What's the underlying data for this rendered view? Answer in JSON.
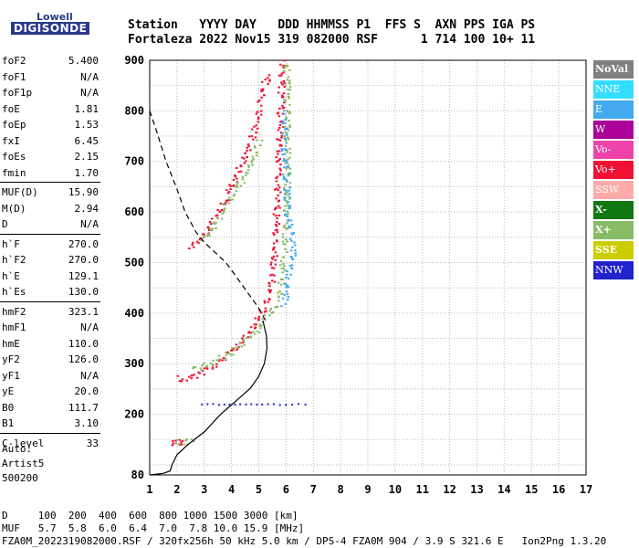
{
  "logo": {
    "line1": "Lowell",
    "line2": "DIGISONDE"
  },
  "header": {
    "line1": "Station   YYYY DAY   DDD HHMMSS P1  FFS S  AXN PPS IGA PS",
    "line2": "Fortaleza 2022 Nov15 319 082000 RSF      1 714 100 10+ 11"
  },
  "param_groups": [
    [
      {
        "name": "foF2",
        "value": "5.400"
      },
      {
        "name": "foF1",
        "value": "N/A"
      },
      {
        "name": "foF1p",
        "value": "N/A"
      },
      {
        "name": "foE",
        "value": "1.81"
      },
      {
        "name": "foEp",
        "value": "1.53"
      },
      {
        "name": "fxI",
        "value": "6.45"
      },
      {
        "name": "foEs",
        "value": "2.15"
      },
      {
        "name": "fmin",
        "value": "1.70"
      }
    ],
    [
      {
        "name": "MUF(D)",
        "value": "15.90"
      },
      {
        "name": "M(D)",
        "value": "2.94"
      },
      {
        "name": "D",
        "value": "N/A"
      }
    ],
    [
      {
        "name": "h`F",
        "value": "270.0"
      },
      {
        "name": "h`F2",
        "value": "270.0"
      },
      {
        "name": "h`E",
        "value": "129.1"
      },
      {
        "name": "h`Es",
        "value": "130.0"
      }
    ],
    [
      {
        "name": "hmF2",
        "value": "323.1"
      },
      {
        "name": "hmF1",
        "value": "N/A"
      },
      {
        "name": "hmE",
        "value": "110.0"
      },
      {
        "name": "yF2",
        "value": "126.0"
      },
      {
        "name": "yF1",
        "value": "N/A"
      },
      {
        "name": "yE",
        "value": "20.0"
      },
      {
        "name": "B0",
        "value": "111.7"
      },
      {
        "name": "B1",
        "value": "3.10"
      }
    ],
    [
      {
        "name": "C-level",
        "value": "33"
      }
    ]
  ],
  "autoscaling": {
    "line1": "Auto:",
    "line2": "Artist5",
    "line3": "500200"
  },
  "legend": [
    {
      "label": "NoVal",
      "bg": "#808080",
      "fg": "#ffffff",
      "bold": true
    },
    {
      "label": "NNE",
      "bg": "#33ddff",
      "fg": "#ffffff"
    },
    {
      "label": "E",
      "bg": "#44aaee",
      "fg": "#ffffff"
    },
    {
      "label": "W",
      "bg": "#aa0099",
      "fg": "#ffffff"
    },
    {
      "label": "Vo-",
      "bg": "#ee44aa",
      "fg": "#ffffff"
    },
    {
      "label": "Vo+",
      "bg": "#ee1133",
      "fg": "#ffffff"
    },
    {
      "label": "SSW",
      "bg": "#ffaaaa",
      "fg": "#ffffff"
    },
    {
      "label": "X-",
      "bg": "#117711",
      "fg": "#ffffff",
      "bold": true
    },
    {
      "label": "X+",
      "bg": "#88bb66",
      "fg": "#ffffff",
      "bold": true
    },
    {
      "label": "SSE",
      "bg": "#cccc00",
      "fg": "#ffffff",
      "bold": true
    },
    {
      "label": "NNW",
      "bg": "#2222cc",
      "fg": "#ffffff"
    }
  ],
  "footer": {
    "line1": "D     100  200  400  600  800 1000 1500 3000 [km]",
    "line2": "MUF   5.7  5.8  6.0  6.4  7.0  7.8 10.0 15.9 [MHz]",
    "line3": "FZA0M_2022319082000.RSF / 320fx256h 50 kHz 5.0 km / DPS-4 FZA0M 904 / 3.9 S 321.6 E   Ion2Png 1.3.20"
  },
  "chart_data": {
    "type": "scatter",
    "xlabel": "",
    "ylabel": "",
    "xlim": [
      1,
      17
    ],
    "ylim": [
      80,
      900
    ],
    "xticks": [
      1,
      2,
      3,
      4,
      5,
      6,
      7,
      8,
      9,
      10,
      11,
      12,
      13,
      14,
      15,
      16,
      17
    ],
    "yticks": [
      80,
      200,
      300,
      400,
      500,
      600,
      700,
      800,
      900
    ],
    "grid": true,
    "legend_position": "right",
    "profile_line": [
      [
        1.0,
        80
      ],
      [
        1.5,
        83
      ],
      [
        1.75,
        88
      ],
      [
        1.82,
        100
      ],
      [
        2.0,
        120
      ],
      [
        2.4,
        140
      ],
      [
        3.0,
        165
      ],
      [
        3.6,
        200
      ],
      [
        4.2,
        228
      ],
      [
        4.7,
        252
      ],
      [
        5.0,
        275
      ],
      [
        5.2,
        300
      ],
      [
        5.3,
        330
      ],
      [
        5.28,
        355
      ],
      [
        5.15,
        385
      ]
    ],
    "dashed_trace": [
      [
        1.0,
        800
      ],
      [
        1.25,
        760
      ],
      [
        1.6,
        700
      ],
      [
        2.0,
        645
      ],
      [
        2.3,
        600
      ],
      [
        2.7,
        560
      ],
      [
        3.0,
        540
      ],
      [
        3.4,
        520
      ],
      [
        3.8,
        500
      ],
      [
        4.2,
        470
      ],
      [
        4.6,
        440
      ],
      [
        5.0,
        410
      ],
      [
        5.3,
        380
      ]
    ],
    "traces": [
      {
        "series": "Vo+",
        "kind": "band",
        "points": [
          [
            1.95,
            275
          ],
          [
            2.2,
            272
          ],
          [
            2.5,
            275
          ],
          [
            2.8,
            283
          ],
          [
            3.1,
            292
          ],
          [
            3.4,
            300
          ],
          [
            3.7,
            312
          ],
          [
            4.0,
            325
          ],
          [
            4.3,
            343
          ],
          [
            4.6,
            365
          ],
          [
            4.9,
            385
          ],
          [
            5.1,
            405
          ],
          [
            5.3,
            430
          ],
          [
            5.45,
            470
          ],
          [
            5.55,
            520
          ],
          [
            5.6,
            580
          ],
          [
            5.65,
            640
          ],
          [
            5.7,
            700
          ],
          [
            5.75,
            780
          ],
          [
            5.8,
            860
          ],
          [
            5.85,
            900
          ]
        ]
      },
      {
        "series": "X+",
        "kind": "band",
        "points": [
          [
            2.6,
            290
          ],
          [
            3.0,
            296
          ],
          [
            3.4,
            305
          ],
          [
            3.8,
            318
          ],
          [
            4.2,
            335
          ],
          [
            4.6,
            355
          ],
          [
            5.0,
            375
          ],
          [
            5.3,
            395
          ],
          [
            5.6,
            420
          ],
          [
            5.8,
            460
          ],
          [
            5.9,
            520
          ],
          [
            5.95,
            580
          ],
          [
            6.0,
            650
          ],
          [
            6.0,
            720
          ],
          [
            6.0,
            800
          ],
          [
            6.0,
            900
          ]
        ]
      },
      {
        "series": "Vo+",
        "kind": "band",
        "points": [
          [
            2.5,
            530
          ],
          [
            2.8,
            545
          ],
          [
            3.1,
            565
          ],
          [
            3.4,
            590
          ],
          [
            3.7,
            620
          ],
          [
            4.0,
            650
          ],
          [
            4.3,
            690
          ],
          [
            4.6,
            730
          ],
          [
            4.9,
            780
          ],
          [
            5.1,
            830
          ],
          [
            5.3,
            880
          ]
        ]
      },
      {
        "series": "X+",
        "kind": "band",
        "points": [
          [
            2.8,
            540
          ],
          [
            3.1,
            560
          ],
          [
            3.5,
            590
          ],
          [
            3.9,
            625
          ],
          [
            4.3,
            660
          ],
          [
            4.7,
            700
          ],
          [
            5.0,
            745
          ]
        ]
      },
      {
        "series": "E",
        "kind": "band",
        "points": [
          [
            5.9,
            420
          ],
          [
            6.0,
            450
          ],
          [
            6.1,
            480
          ],
          [
            6.2,
            510
          ],
          [
            6.2,
            540
          ],
          [
            6.1,
            570
          ],
          [
            6.0,
            600
          ],
          [
            6.0,
            650
          ],
          [
            5.9,
            720
          ],
          [
            5.9,
            800
          ]
        ]
      },
      {
        "series": "Vo+",
        "kind": "band",
        "points": [
          [
            1.7,
            146
          ],
          [
            1.9,
            145
          ],
          [
            2.1,
            145
          ],
          [
            2.3,
            146
          ]
        ]
      },
      {
        "series": "X+",
        "kind": "band",
        "points": [
          [
            2.0,
            145
          ],
          [
            2.2,
            146
          ],
          [
            2.4,
            146
          ],
          [
            2.6,
            147
          ]
        ]
      },
      {
        "series": "NNW",
        "kind": "line",
        "points": [
          [
            2.9,
            222
          ],
          [
            3.5,
            221
          ],
          [
            4.5,
            221
          ],
          [
            5.5,
            221
          ],
          [
            6.2,
            221
          ],
          [
            6.9,
            222
          ]
        ]
      }
    ]
  }
}
